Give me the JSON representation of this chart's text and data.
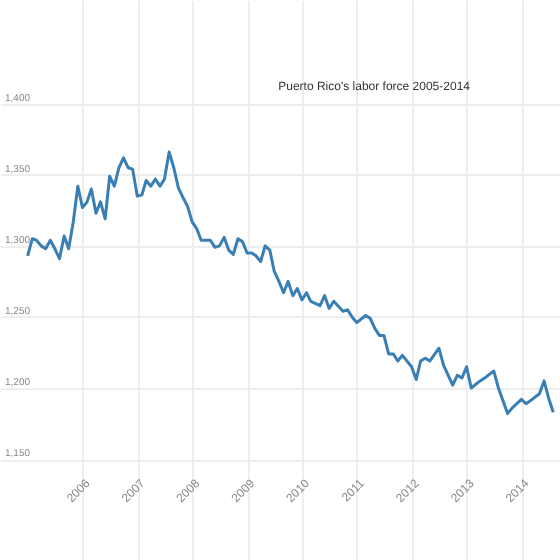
{
  "chart_data": {
    "type": "line",
    "title": "Puerto Rico's labor force 2005-2014",
    "x": [
      "2005-01",
      "2005-02",
      "2005-03",
      "2005-04",
      "2005-05",
      "2005-06",
      "2005-07",
      "2005-08",
      "2005-09",
      "2005-10",
      "2005-11",
      "2005-12",
      "2006-01",
      "2006-02",
      "2006-03",
      "2006-04",
      "2006-05",
      "2006-06",
      "2006-07",
      "2006-08",
      "2006-09",
      "2006-10",
      "2006-11",
      "2006-12",
      "2007-01",
      "2007-02",
      "2007-03",
      "2007-04",
      "2007-05",
      "2007-06",
      "2007-07",
      "2007-08",
      "2007-09",
      "2007-10",
      "2007-11",
      "2007-12",
      "2008-01",
      "2008-02",
      "2008-03",
      "2008-04",
      "2008-05",
      "2008-06",
      "2008-07",
      "2008-08",
      "2008-09",
      "2008-10",
      "2008-11",
      "2008-12",
      "2009-01",
      "2009-02",
      "2009-03",
      "2009-04",
      "2009-05",
      "2009-06",
      "2009-07",
      "2009-08",
      "2009-09",
      "2009-10",
      "2009-11",
      "2009-12",
      "2010-01",
      "2010-02",
      "2010-03",
      "2010-05",
      "2010-06",
      "2010-07",
      "2010-08",
      "2010-10",
      "2010-11",
      "2010-12",
      "2011-01",
      "2011-03",
      "2011-04",
      "2011-05",
      "2011-06",
      "2011-07",
      "2011-08",
      "2011-09",
      "2011-10",
      "2011-11",
      "2012-01",
      "2012-02",
      "2012-03",
      "2012-04",
      "2012-05",
      "2012-07",
      "2012-08",
      "2012-10",
      "2012-11",
      "2012-12",
      "2013-01",
      "2013-02",
      "2013-04",
      "2013-05",
      "2013-07",
      "2013-08",
      "2013-10",
      "2013-11",
      "2014-01",
      "2014-02",
      "2014-03",
      "2014-05",
      "2014-06",
      "2014-07",
      "2014-08"
    ],
    "series": [
      {
        "color": "#3a7fb4",
        "values": [
          1293,
          1305,
          1304,
          1300,
          1298,
          1304,
          1298,
          1291,
          1307,
          1298,
          1317,
          1342,
          1327,
          1331,
          1340,
          1323,
          1331,
          1319,
          1349,
          1342,
          1355,
          1362,
          1355,
          1354,
          1335,
          1336,
          1346,
          1342,
          1347,
          1342,
          1347,
          1366,
          1355,
          1341,
          1334,
          1328,
          1317,
          1312,
          1304,
          1304,
          1304,
          1299,
          1300,
          1306,
          1297,
          1294,
          1305,
          1303,
          1295,
          1295,
          1293,
          1289,
          1300,
          1297,
          1282,
          1275,
          1267,
          1275,
          1265,
          1270,
          1262,
          1267,
          1261,
          1258,
          1265,
          1256,
          1261,
          1254,
          1255,
          1250,
          1246,
          1251,
          1249,
          1242,
          1237,
          1237,
          1224,
          1224,
          1219,
          1223,
          1215,
          1206,
          1219,
          1221,
          1219,
          1228,
          1216,
          1202,
          1209,
          1207,
          1215,
          1200,
          1205,
          1207,
          1212,
          1200,
          1182,
          1186,
          1192,
          1189,
          1191,
          1196,
          1205,
          1193,
          1183
        ]
      }
    ],
    "xlim": [
      "2004-07",
      "2014-09-15"
    ],
    "xticks": [
      "2006",
      "2007",
      "2008",
      "2009",
      "2010",
      "2011",
      "2012",
      "2013",
      "2014"
    ],
    "ylim": [
      1079,
      1473
    ],
    "yticks": [
      {
        "value": 1150,
        "label": "1,150"
      },
      {
        "value": 1200,
        "label": "1,200"
      },
      {
        "value": 1250,
        "label": "1,250"
      },
      {
        "value": 1300,
        "label": "1,300"
      },
      {
        "value": 1350,
        "label": "1,350"
      },
      {
        "value": 1400,
        "label": "1,400"
      }
    ],
    "grid": true
  }
}
